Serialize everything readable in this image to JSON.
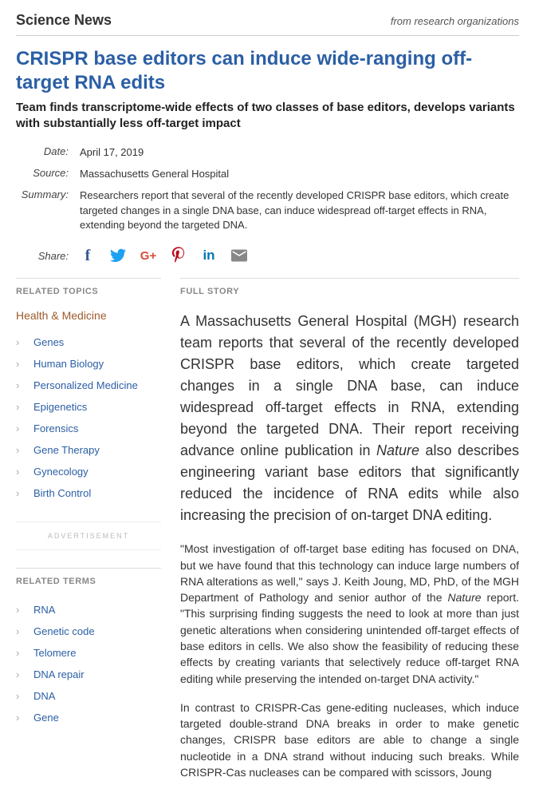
{
  "header": {
    "section": "Science News",
    "tagline": "from research organizations"
  },
  "article": {
    "headline": "CRISPR base editors can induce wide-ranging off-target RNA edits",
    "subheadline": "Team finds transcriptome-wide effects of two classes of base editors, develops variants with substantially less off-target impact",
    "meta": {
      "date_label": "Date:",
      "date_value": "April 17, 2019",
      "source_label": "Source:",
      "source_value": "Massachusetts General Hospital",
      "summary_label": "Summary:",
      "summary_value": "Researchers report that several of the recently developed CRISPR base editors, which create targeted changes in a single DNA base, can induce widespread off-target effects in RNA, extending beyond the targeted DNA."
    },
    "share_label": "Share:",
    "fullstory_label": "FULL STORY",
    "lede_html": "A Massachusetts General Hospital (MGH) research team reports that several of the recently developed CRISPR base editors, which create targeted changes in a single DNA base, can induce widespread off-target effects in RNA, extending beyond the targeted DNA. Their report receiving advance online publication in <em>Nature</em> also describes engineering variant base editors that significantly reduced the incidence of RNA edits while also increasing the precision of on-target DNA editing.",
    "body": [
      "\"Most investigation of off-target base editing has focused on DNA, but we have found that this technology can induce large numbers of RNA alterations as well,\" says J. Keith Joung, MD, PhD, of the MGH Department of Pathology and senior author of the <em>Nature</em> report. \"This surprising finding suggests the need to look at more than just genetic alterations when considering unintended off-target effects of base editors in cells. We also show the feasibility of reducing these effects by creating variants that selectively reduce off-target RNA editing while preserving the intended on-target DNA activity.\"",
      "In contrast to CRISPR-Cas gene-editing nucleases, which induce targeted double-strand DNA breaks in order to make genetic changes, CRISPR base editors are able to change a single nucleotide in a DNA strand without inducing such breaks. While CRISPR-Cas nucleases can be compared with scissors, Joung"
    ]
  },
  "sidebar": {
    "related_topics_label": "RELATED TOPICS",
    "topic_category": "Health & Medicine",
    "topics": [
      "Genes",
      "Human Biology",
      "Personalized Medicine",
      "Epigenetics",
      "Forensics",
      "Gene Therapy",
      "Gynecology",
      "Birth Control"
    ],
    "advertisement_label": "ADVERTISEMENT",
    "related_terms_label": "RELATED TERMS",
    "terms": [
      "RNA",
      "Genetic code",
      "Telomere",
      "DNA repair",
      "DNA",
      "Gene"
    ]
  },
  "share_icons": {
    "facebook": {
      "color": "#3b5998",
      "glyph": "f"
    },
    "twitter": {
      "color": "#1da1f2"
    },
    "gplus": {
      "color": "#dd4b39",
      "glyph": "G+"
    },
    "pinterest": {
      "color": "#bd081c"
    },
    "linkedin": {
      "color": "#0077b5",
      "glyph": "in"
    },
    "email": {
      "color": "#888"
    }
  }
}
